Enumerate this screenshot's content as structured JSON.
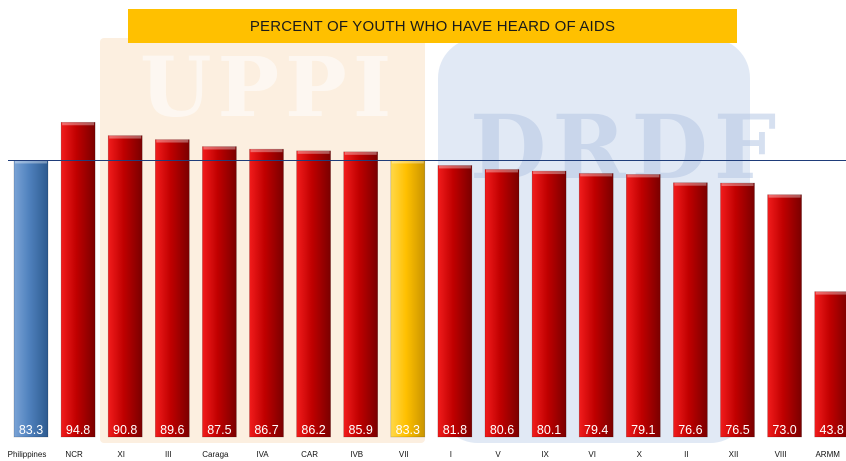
{
  "watermarks": {
    "left": "UPPI",
    "right": "DRDF"
  },
  "chart_data": {
    "type": "bar",
    "title": "PERCENT OF YOUTH WHO HAVE HEARD OF AIDS",
    "categories": [
      "Philippines",
      "NCR",
      "XI",
      "III",
      "Caraga",
      "IVA",
      "CAR",
      "IVB",
      "VII",
      "I",
      "V",
      "IX",
      "VI",
      "X",
      "II",
      "XII",
      "VIII",
      "ARMM"
    ],
    "values": [
      83.3,
      94.8,
      90.8,
      89.6,
      87.5,
      86.7,
      86.2,
      85.9,
      83.3,
      81.8,
      80.6,
      80.1,
      79.4,
      79.1,
      76.6,
      76.5,
      73.0,
      43.8
    ],
    "value_labels": [
      "83.3",
      "94.8",
      "90.8",
      "89.6",
      "87.5",
      "86.7",
      "86.2",
      "85.9",
      "83.3",
      "81.8",
      "80.6",
      "80.1",
      "79.4",
      "79.1",
      "76.6",
      "76.5",
      "73.0",
      "43.8"
    ],
    "bar_colors": [
      "#4f81bd",
      "#c00000",
      "#c00000",
      "#c00000",
      "#c00000",
      "#c00000",
      "#c00000",
      "#c00000",
      "#ffc000",
      "#c00000",
      "#c00000",
      "#c00000",
      "#c00000",
      "#c00000",
      "#c00000",
      "#c00000",
      "#c00000",
      "#c00000"
    ],
    "reference_line": 83.3,
    "reference_line_color": "#1f3d7a",
    "xlabel": "",
    "ylabel": "",
    "grid": false,
    "legend": "none"
  },
  "colors": {
    "title_background": "#ffc000",
    "national_bar": "#4f81bd",
    "highlight_bar": "#ffc000",
    "region_bar": "#c00000"
  }
}
